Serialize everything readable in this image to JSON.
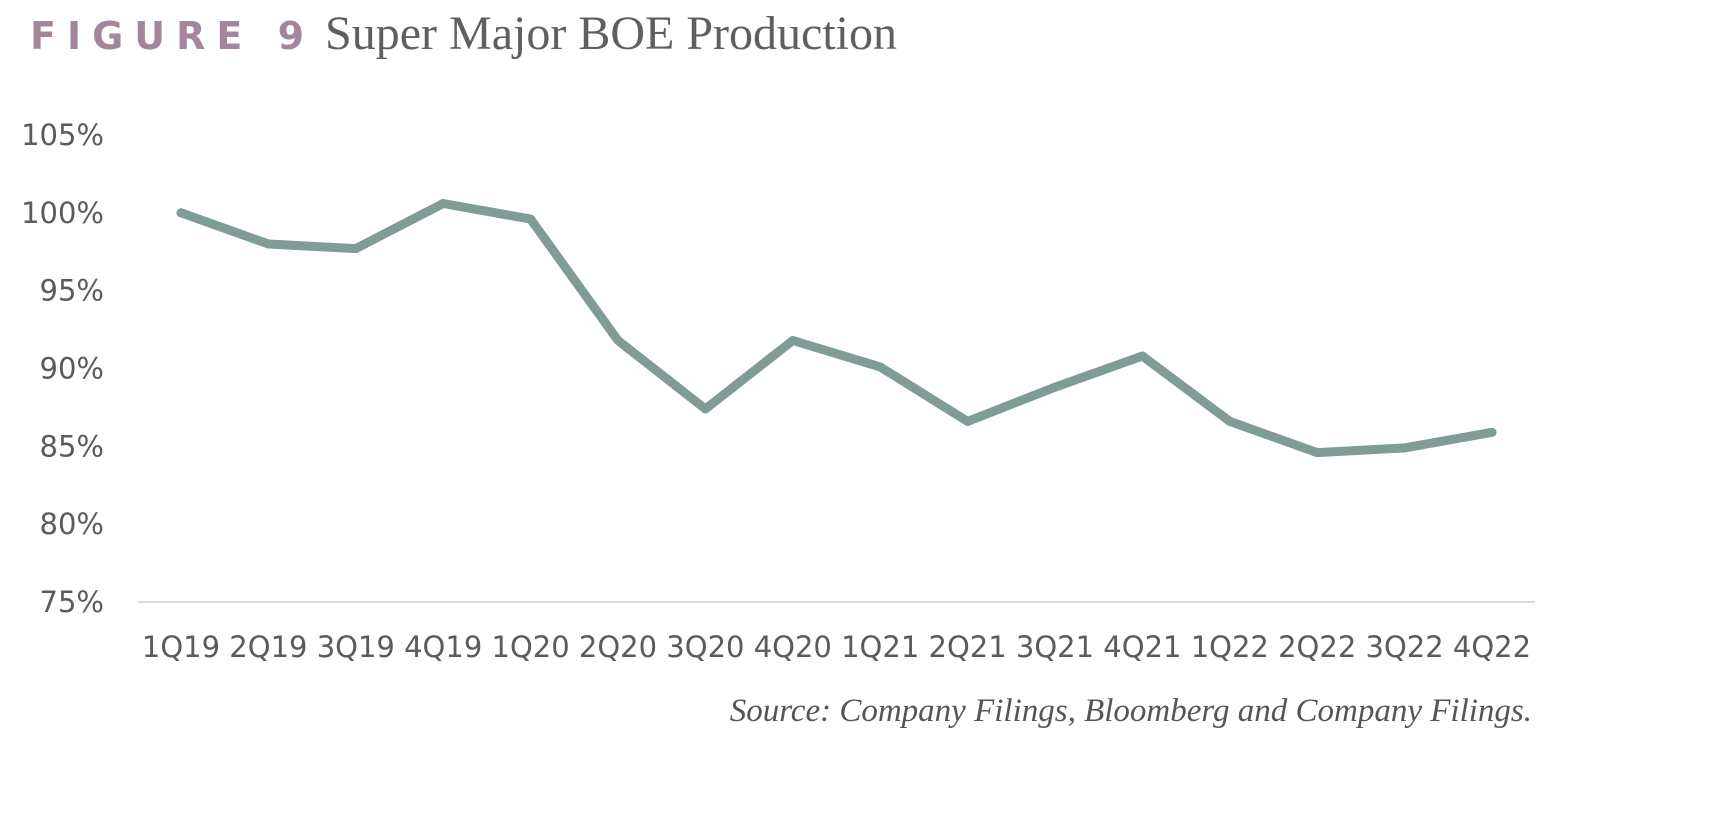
{
  "header": {
    "figure_label": "FIGURE 9",
    "title": "Super Major BOE Production"
  },
  "source_note": "Source: Company Filings, Bloomberg and Company Filings.",
  "colors": {
    "line": "#7f9c96",
    "axis": "#d9d9d9",
    "figure_label": "#a3869c",
    "title": "#5f5f5f"
  },
  "chart_data": {
    "type": "line",
    "title": "Super Major BOE Production",
    "xlabel": "",
    "ylabel": "",
    "categories": [
      "1Q19",
      "2Q19",
      "3Q19",
      "4Q19",
      "1Q20",
      "2Q20",
      "3Q20",
      "4Q20",
      "1Q21",
      "2Q21",
      "3Q21",
      "4Q21",
      "1Q22",
      "2Q22",
      "3Q22",
      "4Q22"
    ],
    "series": [
      {
        "values": [
          100.0,
          98.0,
          97.7,
          100.6,
          99.6,
          91.8,
          87.4,
          91.8,
          90.1,
          86.6,
          88.8,
          90.8,
          86.6,
          84.6,
          84.9,
          85.9
        ]
      }
    ],
    "ylim": [
      75,
      105
    ],
    "yticks": [
      105,
      100,
      95,
      90,
      85,
      80,
      75
    ],
    "ytick_labels": [
      "105%",
      "100%",
      "95%",
      "90%",
      "85%",
      "80%",
      "75%"
    ],
    "grid": false,
    "legend": "none"
  }
}
